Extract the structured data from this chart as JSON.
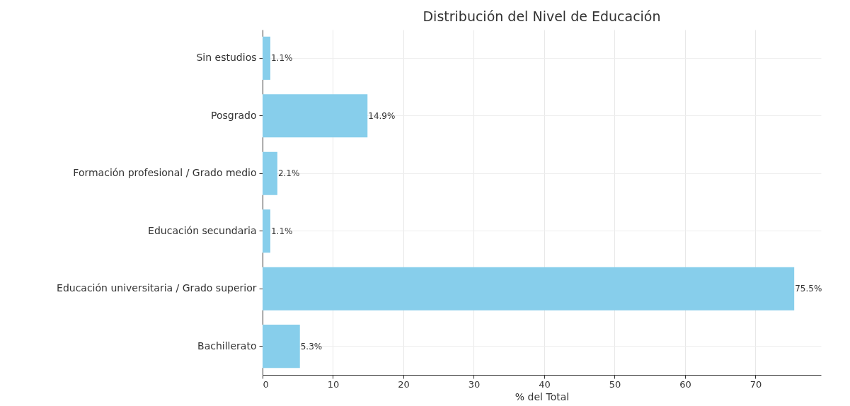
{
  "chart_data": {
    "type": "bar",
    "orientation": "horizontal",
    "title": "Distribución del Nivel de Educación",
    "xlabel": "% del Total",
    "categories": [
      "Sin estudios",
      "Posgrado",
      "Formación profesional / Grado medio",
      "Educación secundaria",
      "Educación universitaria / Grado superior",
      "Bachillerato"
    ],
    "values": [
      1.1,
      14.9,
      2.1,
      1.1,
      75.5,
      5.3
    ],
    "value_labels": [
      "1.1%",
      "14.9%",
      "2.1%",
      "1.1%",
      "75.5%",
      "5.3%"
    ],
    "color": "#87ceeb",
    "xlim": [
      0,
      79.3
    ],
    "xticks": [
      0,
      10,
      20,
      30,
      40,
      50,
      60,
      70
    ],
    "grid": true
  }
}
